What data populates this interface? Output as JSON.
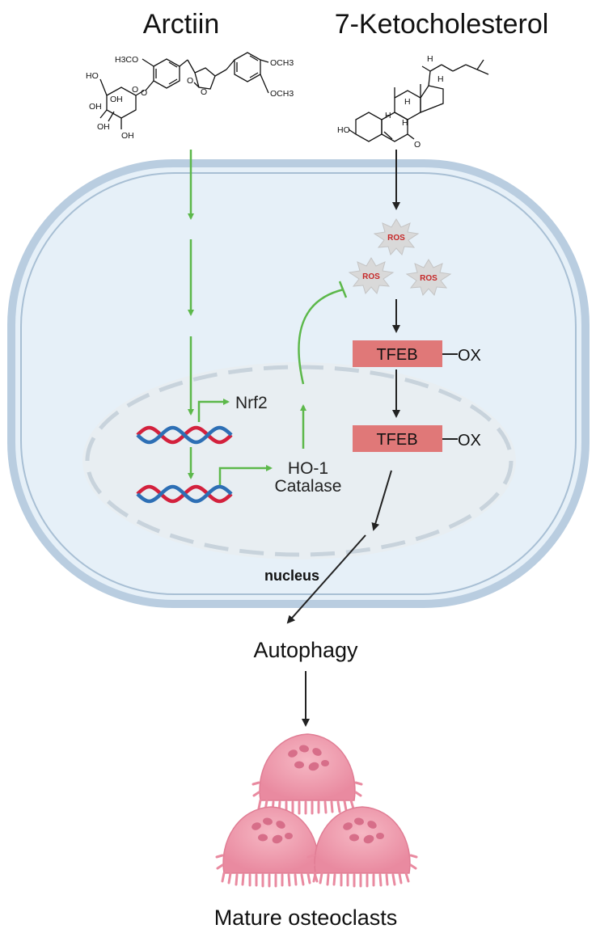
{
  "title_left": "Arctiin",
  "title_right": "7-Ketocholesterol",
  "arctiin_labels": {
    "h3co": "H3CO",
    "och3_top": "OCH3",
    "och3_bottom": "OCH3",
    "ho_chain": "HO",
    "oh1": "OH",
    "oh2": "OH",
    "oh3": "OH",
    "oh4": "OH",
    "o_ring": "O",
    "o_link": "O",
    "o_lactone": "O",
    "o_carbonyl": "O"
  },
  "keto_labels": {
    "ho": "HO",
    "o": "O",
    "h1": "H",
    "h2": "H",
    "h3": "H",
    "h4": "H",
    "h5": "H"
  },
  "ros_label": "ROS",
  "tfeb_label": "TFEB",
  "ox_label": "OX",
  "nrf2_label": "Nrf2",
  "ho1_label": "HO-1",
  "catalase_label": "Catalase",
  "nucleus_label": "nucleus",
  "autophagy_label": "Autophagy",
  "osteoclasts_label": "Mature osteoclasts",
  "colors": {
    "green_arrow": "#5cb84a",
    "membrane": "#b9cde0",
    "cytoplasm": "#e6f0f8",
    "nucleus_fill": "#e8eef2",
    "tfeb_box": "#e07878",
    "dna_red": "#d3213d",
    "dna_blue": "#2d6fb5",
    "osteoclast": "#f1a2b2"
  }
}
